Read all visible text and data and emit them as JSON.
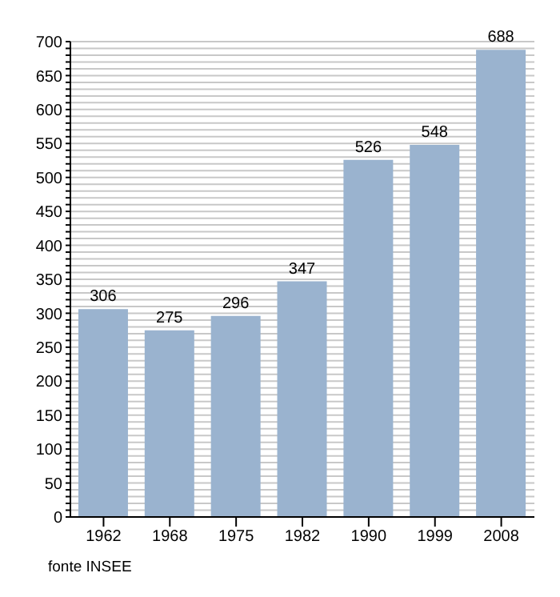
{
  "chart_data": {
    "type": "bar",
    "categories": [
      "1962",
      "1968",
      "1975",
      "1982",
      "1990",
      "1999",
      "2008"
    ],
    "values": [
      306,
      275,
      296,
      347,
      526,
      548,
      688
    ],
    "color": "#9ab3cf",
    "data_labels": true,
    "grid": "y",
    "ylim": [
      0,
      700
    ],
    "yticks": [
      0,
      {
        "value": 10,
        "label": null
      },
      {
        "value": 20,
        "label": null
      },
      {
        "value": 30,
        "label": null
      },
      {
        "value": 40,
        "label": null
      },
      50,
      {
        "value": 60,
        "label": null
      },
      {
        "value": 70,
        "label": null
      },
      {
        "value": 80,
        "label": null
      },
      {
        "value": 90,
        "label": null
      },
      100,
      {
        "value": 110,
        "label": null
      },
      {
        "value": 120,
        "label": null
      },
      {
        "value": 130,
        "label": null
      },
      {
        "value": 140,
        "label": null
      },
      150,
      {
        "value": 160,
        "label": null
      },
      {
        "value": 170,
        "label": null
      },
      {
        "value": 180,
        "label": null
      },
      {
        "value": 190,
        "label": null
      },
      200,
      {
        "value": 210,
        "label": null
      },
      {
        "value": 220,
        "label": null
      },
      {
        "value": 230,
        "label": null
      },
      {
        "value": 240,
        "label": null
      },
      250,
      {
        "value": 260,
        "label": null
      },
      {
        "value": 270,
        "label": null
      },
      {
        "value": 280,
        "label": null
      },
      {
        "value": 290,
        "label": null
      },
      300,
      {
        "value": 310,
        "label": null
      },
      {
        "value": 320,
        "label": null
      },
      {
        "value": 330,
        "label": null
      },
      {
        "value": 340,
        "label": null
      },
      350,
      {
        "value": 360,
        "label": null
      },
      {
        "value": 370,
        "label": null
      },
      {
        "value": 380,
        "label": null
      },
      {
        "value": 390,
        "label": null
      },
      400,
      {
        "value": 410,
        "label": null
      },
      {
        "value": 420,
        "label": null
      },
      {
        "value": 430,
        "label": null
      },
      {
        "value": 440,
        "label": null
      },
      450,
      {
        "value": 460,
        "label": null
      },
      {
        "value": 470,
        "label": null
      },
      {
        "value": 480,
        "label": null
      },
      {
        "value": 490,
        "label": null
      },
      500,
      {
        "value": 510,
        "label": null
      },
      {
        "value": 520,
        "label": null
      },
      {
        "value": 530,
        "label": null
      },
      {
        "value": 540,
        "label": null
      },
      550,
      {
        "value": 560,
        "label": null
      },
      {
        "value": 570,
        "label": null
      },
      {
        "value": 580,
        "label": null
      },
      {
        "value": 590,
        "label": null
      },
      600,
      {
        "value": 610,
        "label": null
      },
      {
        "value": 620,
        "label": null
      },
      {
        "value": 630,
        "label": null
      },
      {
        "value": 640,
        "label": null
      },
      650,
      {
        "value": 660,
        "label": null
      },
      {
        "value": 670,
        "label": null
      },
      {
        "value": 680,
        "label": null
      },
      {
        "value": 690,
        "label": null
      },
      700
    ],
    "annotations": [
      "fonte INSEE"
    ]
  }
}
